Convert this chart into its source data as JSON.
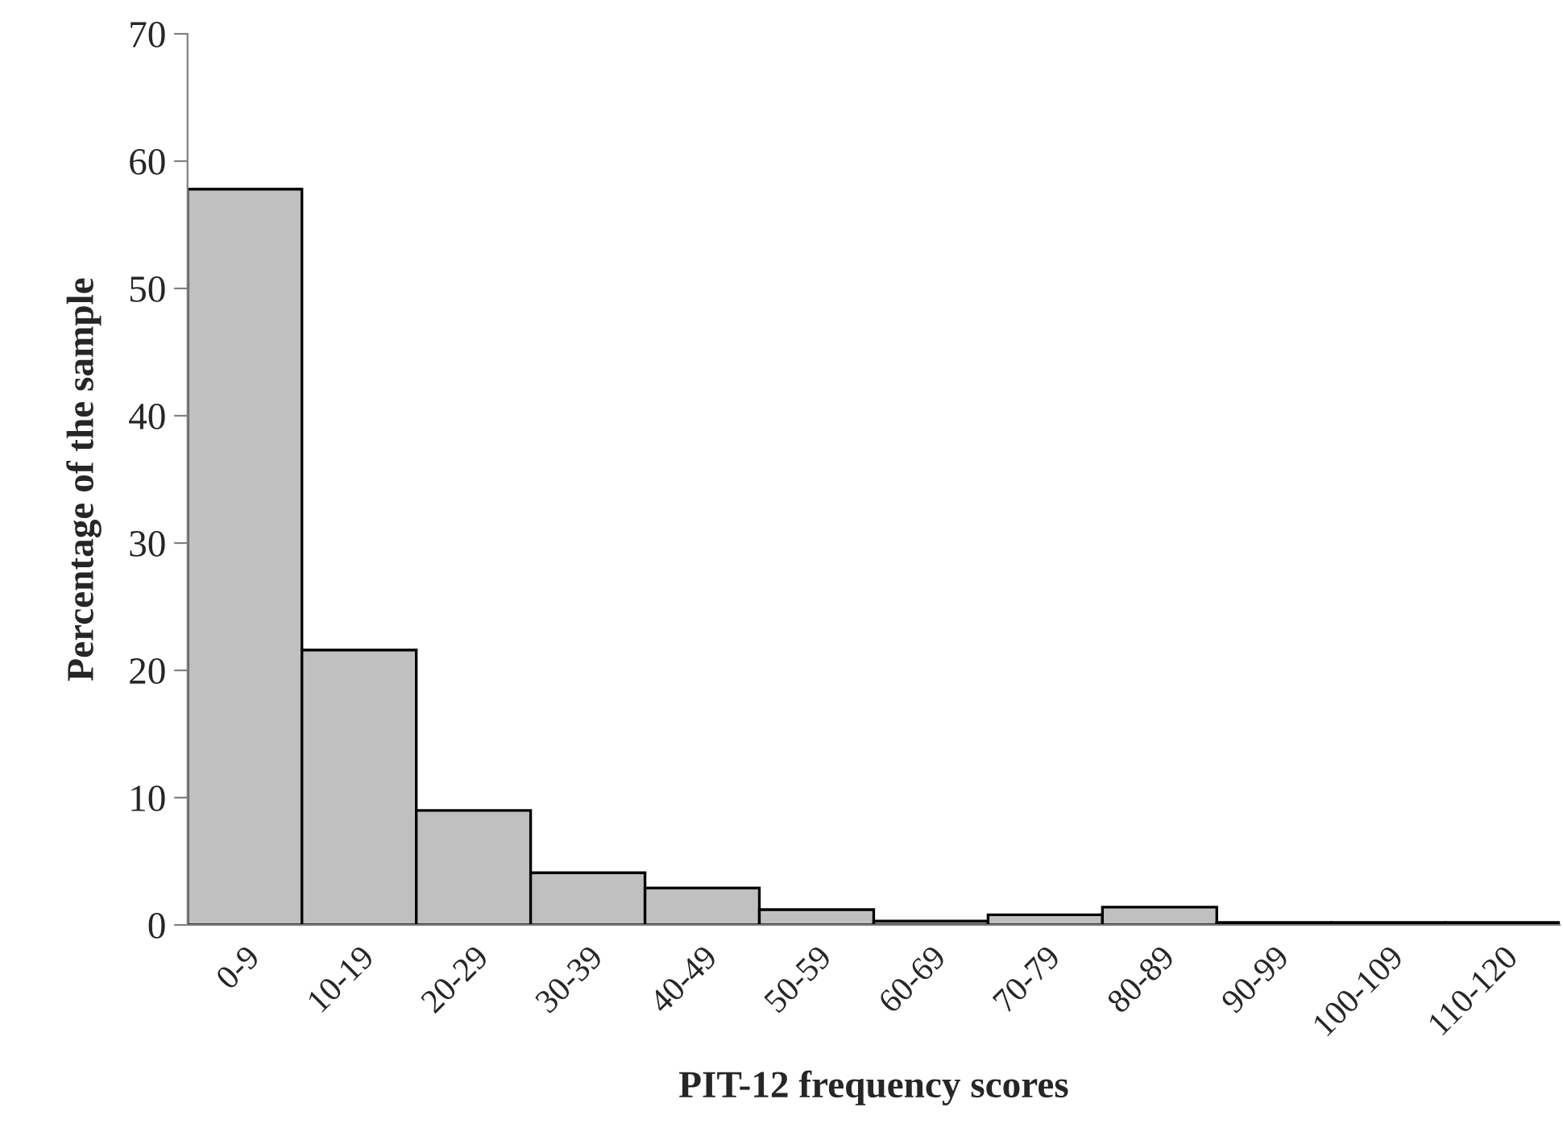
{
  "chart_data": {
    "type": "bar",
    "xlabel": "PIT-12 frequency scores",
    "ylabel": "Percentage of the sample",
    "categories": [
      "0-9",
      "10-19",
      "20-29",
      "30-39",
      "40-49",
      "50-59",
      "60-69",
      "70-79",
      "80-89",
      "90-99",
      "100-109",
      "110-120"
    ],
    "values": [
      57.8,
      21.6,
      9.0,
      4.1,
      2.9,
      1.2,
      0.3,
      0.8,
      1.4,
      0.2,
      0.2,
      0.2
    ],
    "color": "#c0c0c0",
    "ylim": [
      0,
      70
    ],
    "yticks": [
      0,
      10,
      20,
      30,
      40,
      50,
      60,
      70
    ],
    "grid": false
  }
}
